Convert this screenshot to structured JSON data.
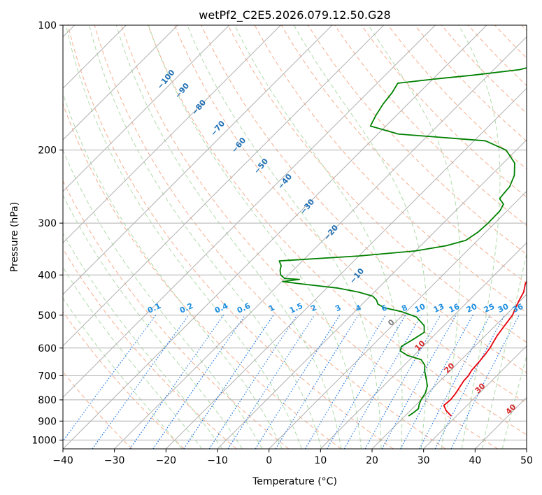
{
  "chart_data": {
    "type": "line",
    "title": "wetPf2_C2E5.2026.079.12.50.G28",
    "xlabel": "Temperature (°C)",
    "ylabel": "Pressure (hPa)",
    "xlim": [
      -40,
      50
    ],
    "ylim": [
      1050,
      100
    ],
    "x_ticks": [
      -40,
      -30,
      -20,
      -10,
      0,
      10,
      20,
      30,
      40,
      50
    ],
    "x_tick_labels": [
      "−40",
      "−30",
      "−20",
      "−10",
      "0",
      "10",
      "20",
      "30",
      "40",
      "50"
    ],
    "y_ticks": [
      100,
      200,
      300,
      400,
      500,
      600,
      700,
      800,
      900,
      1000
    ],
    "y_tick_labels": [
      "100",
      "200",
      "300",
      "400",
      "500",
      "600",
      "700",
      "800",
      "900",
      "1000"
    ],
    "colors": {
      "temperature": "#e8000b",
      "dewpoint": "#008000",
      "isotherm": "#b0b0b0",
      "isobar": "#b0b0b0",
      "dry_adiabat": "#f4a582",
      "moist_adiabat": "#a6d7a0",
      "mixing_ratio": "#1f77e4",
      "label_blue": "#1f6fb4",
      "label_red": "#d62728"
    },
    "series": [
      {
        "name": "Temperature",
        "color": "#e8000b",
        "points": [
          [
            875,
            29.0
          ],
          [
            850,
            27.0
          ],
          [
            825,
            25.5
          ],
          [
            800,
            25.7
          ],
          [
            775,
            25.5
          ],
          [
            750,
            25.1
          ],
          [
            720,
            24.6
          ],
          [
            700,
            24.5
          ],
          [
            680,
            24.1
          ],
          [
            650,
            23.9
          ],
          [
            620,
            23.6
          ],
          [
            600,
            23.3
          ],
          [
            580,
            22.8
          ],
          [
            560,
            22.3
          ],
          [
            530,
            21.8
          ],
          [
            500,
            21.3
          ],
          [
            480,
            20.5
          ],
          [
            460,
            19.7
          ],
          [
            440,
            19.0
          ],
          [
            420,
            17.7
          ],
          [
            400,
            17.0
          ],
          [
            380,
            15.7
          ],
          [
            360,
            13.5
          ],
          [
            340,
            11.4
          ],
          [
            320,
            9.5
          ],
          [
            300,
            7.4
          ],
          [
            280,
            5.4
          ],
          [
            260,
            3.6
          ],
          [
            240,
            1.9
          ],
          [
            220,
            0.2
          ],
          [
            200,
            -1.6
          ],
          [
            190,
            -2.5
          ],
          [
            180,
            -3.8
          ],
          [
            170,
            -5.5
          ],
          [
            160,
            -7.9
          ],
          [
            150,
            -10.5
          ],
          [
            140,
            -13.3
          ],
          [
            130,
            -16.4
          ],
          [
            120,
            -19.7
          ],
          [
            115,
            -21.3
          ],
          [
            110,
            -22.9
          ],
          [
            105,
            -23.7
          ],
          [
            100,
            -23.9
          ]
        ]
      },
      {
        "name": "Dewpoint",
        "color": "#008000",
        "points": [
          [
            875,
            20.7
          ],
          [
            860,
            21.0
          ],
          [
            840,
            21.2
          ],
          [
            820,
            20.5
          ],
          [
            800,
            20.0
          ],
          [
            770,
            19.5
          ],
          [
            740,
            18.5
          ],
          [
            710,
            16.8
          ],
          [
            680,
            15.0
          ],
          [
            660,
            14.0
          ],
          [
            640,
            12.2
          ],
          [
            625,
            8.7
          ],
          [
            610,
            6.5
          ],
          [
            595,
            5.8
          ],
          [
            585,
            6.2
          ],
          [
            570,
            6.8
          ],
          [
            550,
            7.5
          ],
          [
            530,
            6.2
          ],
          [
            505,
            3.0
          ],
          [
            490,
            -1.0
          ],
          [
            480,
            -5.0
          ],
          [
            470,
            -7.0
          ],
          [
            460,
            -8.0
          ],
          [
            450,
            -9.5
          ],
          [
            440,
            -13.0
          ],
          [
            430,
            -18.0
          ],
          [
            420,
            -26.0
          ],
          [
            415,
            -29.8
          ],
          [
            410,
            -27.0
          ],
          [
            408,
            -30.0
          ],
          [
            400,
            -31.5
          ],
          [
            390,
            -32.5
          ],
          [
            380,
            -33.2
          ],
          [
            370,
            -34.5
          ],
          [
            360,
            -20.0
          ],
          [
            350,
            -10.0
          ],
          [
            340,
            -5.0
          ],
          [
            330,
            -2.3
          ],
          [
            315,
            -1.5
          ],
          [
            300,
            -1.3
          ],
          [
            280,
            -1.4
          ],
          [
            270,
            -2.0
          ],
          [
            262,
            -3.8
          ],
          [
            255,
            -4.0
          ],
          [
            245,
            -4.2
          ],
          [
            230,
            -5.5
          ],
          [
            215,
            -7.8
          ],
          [
            200,
            -12.0
          ],
          [
            190,
            -17.8
          ],
          [
            183,
            -36.0
          ],
          [
            175,
            -43.0
          ],
          [
            165,
            -44.0
          ],
          [
            155,
            -44.8
          ],
          [
            145,
            -45.3
          ],
          [
            138,
            -46.0
          ],
          [
            135,
            -40.0
          ],
          [
            132,
            -33.0
          ],
          [
            128,
            -25.0
          ],
          [
            122,
            -20.0
          ],
          [
            118,
            -18.0
          ],
          [
            112,
            -19.0
          ],
          [
            106,
            -21.0
          ],
          [
            100,
            -22.5
          ]
        ]
      }
    ],
    "dry_adiabat_labels": [
      "−100",
      "−90",
      "−80",
      "−70",
      "−60",
      "−50",
      "−40",
      "−30",
      "−20",
      "−10"
    ],
    "moist_adiabat_labels": [
      "0",
      "10",
      "20",
      "30",
      "40"
    ],
    "mixing_ratio_labels": [
      "0.1",
      "0.2",
      "0.4",
      "0.6",
      "1",
      "1.5",
      "2",
      "3",
      "4",
      "6",
      "8",
      "10",
      "13",
      "16",
      "20",
      "25",
      "30",
      "36"
    ]
  }
}
